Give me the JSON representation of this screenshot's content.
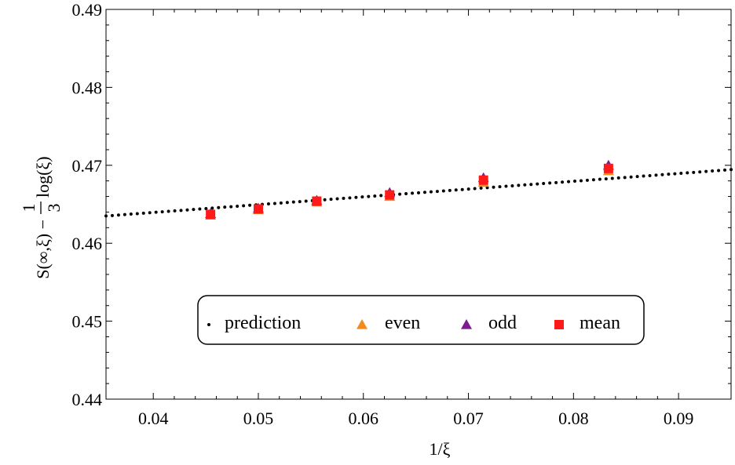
{
  "chart_data": {
    "type": "scatter",
    "xlabel": "1/ξ",
    "ylabel": {
      "prefix": "S(∞,ξ) −",
      "frac_num": "1",
      "frac_den": "3",
      "suffix": "log(ξ)"
    },
    "xlim": [
      0.0355,
      0.095
    ],
    "ylim": [
      0.44,
      0.49
    ],
    "x_ticks": [
      0.04,
      0.05,
      0.06,
      0.07,
      0.08,
      0.09
    ],
    "x_tick_labels": [
      "0.04",
      "0.05",
      "0.06",
      "0.07",
      "0.08",
      "0.09"
    ],
    "y_ticks": [
      0.44,
      0.45,
      0.46,
      0.47,
      0.48,
      0.49
    ],
    "y_tick_labels": [
      "0.44",
      "0.45",
      "0.46",
      "0.47",
      "0.48",
      "0.49"
    ],
    "grid": false,
    "legend_position": "lower-center",
    "series": [
      {
        "name": "prediction",
        "marker": "dot-line",
        "color": "#000000",
        "line": {
          "slope": 0.1,
          "intercept": 0.46
        }
      },
      {
        "name": "even",
        "marker": "triangle",
        "color": "#f28a1e",
        "x": [
          0.04545,
          0.05,
          0.05556,
          0.0625,
          0.07143,
          0.08333
        ],
        "y": [
          0.4636,
          0.4643,
          0.4653,
          0.466,
          0.4678,
          0.4693
        ]
      },
      {
        "name": "odd",
        "marker": "triangle",
        "color": "#7b1b8f",
        "x": [
          0.04545,
          0.05,
          0.05556,
          0.0625,
          0.07143,
          0.08333
        ],
        "y": [
          0.4638,
          0.4645,
          0.4655,
          0.4665,
          0.4684,
          0.47
        ]
      },
      {
        "name": "mean",
        "marker": "square",
        "color": "#ff1a1a",
        "x": [
          0.04545,
          0.05,
          0.05556,
          0.0625,
          0.07143,
          0.08333
        ],
        "y": [
          0.4637,
          0.4644,
          0.4654,
          0.4662,
          0.4681,
          0.4696
        ]
      }
    ]
  }
}
